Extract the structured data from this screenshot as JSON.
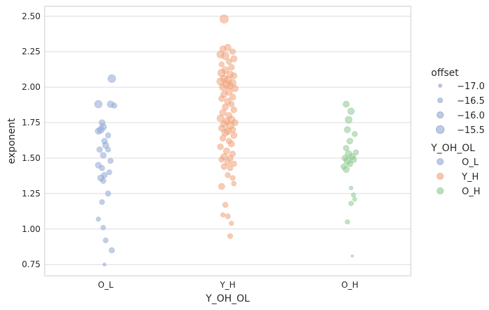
{
  "chart_data": {
    "type": "scatter",
    "title": "",
    "xlabel": "Y_OH_OL",
    "ylabel": "exponent",
    "categories": [
      "O_L",
      "Y_H",
      "O_H"
    ],
    "ylim": [
      0.67,
      2.57
    ],
    "yticks": [
      "0.75",
      "1.00",
      "1.25",
      "1.50",
      "1.75",
      "2.00",
      "2.25",
      "2.50"
    ],
    "grid": true,
    "legend_placement": "right",
    "size_legend": {
      "title": "offset",
      "labels": [
        "−17.0",
        "−16.5",
        "−16.0",
        "−15.5"
      ]
    },
    "hue_legend": {
      "title": "Y_OH_OL",
      "labels": [
        "O_L",
        "Y_H",
        "O_H"
      ]
    },
    "colors": {
      "O_L": "#8fa7d4",
      "Y_H": "#f0a27a",
      "O_H": "#8cc98f"
    },
    "series": [
      {
        "name": "O_L",
        "points": [
          {
            "j": 0.05,
            "y": 2.06,
            "o": -15.5
          },
          {
            "j": -0.06,
            "y": 1.88,
            "o": -15.6
          },
          {
            "j": 0.04,
            "y": 1.88,
            "o": -15.9
          },
          {
            "j": 0.07,
            "y": 1.87,
            "o": -16.3
          },
          {
            "j": -0.03,
            "y": 1.75,
            "o": -16.1
          },
          {
            "j": -0.02,
            "y": 1.72,
            "o": -15.9
          },
          {
            "j": -0.04,
            "y": 1.7,
            "o": -15.8
          },
          {
            "j": -0.06,
            "y": 1.69,
            "o": -16.0
          },
          {
            "j": 0.02,
            "y": 1.66,
            "o": -16.3
          },
          {
            "j": -0.01,
            "y": 1.62,
            "o": -16.2
          },
          {
            "j": 0.0,
            "y": 1.59,
            "o": -16.0
          },
          {
            "j": -0.05,
            "y": 1.56,
            "o": -16.2
          },
          {
            "j": 0.02,
            "y": 1.56,
            "o": -16.4
          },
          {
            "j": -0.02,
            "y": 1.52,
            "o": -16.1
          },
          {
            "j": 0.04,
            "y": 1.48,
            "o": -16.3
          },
          {
            "j": -0.06,
            "y": 1.45,
            "o": -16.1
          },
          {
            "j": -0.03,
            "y": 1.43,
            "o": -16.3
          },
          {
            "j": 0.03,
            "y": 1.4,
            "o": -16.4
          },
          {
            "j": -0.01,
            "y": 1.38,
            "o": -16.2
          },
          {
            "j": -0.04,
            "y": 1.36,
            "o": -16.0
          },
          {
            "j": -0.02,
            "y": 1.34,
            "o": -16.3
          },
          {
            "j": 0.02,
            "y": 1.25,
            "o": -16.3
          },
          {
            "j": -0.03,
            "y": 1.19,
            "o": -16.4
          },
          {
            "j": -0.06,
            "y": 1.07,
            "o": -16.6
          },
          {
            "j": -0.02,
            "y": 1.01,
            "o": -16.5
          },
          {
            "j": 0.0,
            "y": 0.92,
            "o": -16.4
          },
          {
            "j": 0.05,
            "y": 0.85,
            "o": -16.3
          },
          {
            "j": -0.01,
            "y": 0.75,
            "o": -17.0
          }
        ]
      },
      {
        "name": "Y_H",
        "points": [
          {
            "j": -0.03,
            "y": 2.48,
            "o": -15.3
          },
          {
            "j": 0.0,
            "y": 2.28,
            "o": -15.9
          },
          {
            "j": -0.04,
            "y": 2.27,
            "o": -16.1
          },
          {
            "j": 0.04,
            "y": 2.25,
            "o": -16.2
          },
          {
            "j": -0.06,
            "y": 2.23,
            "o": -15.7
          },
          {
            "j": -0.02,
            "y": 2.22,
            "o": -15.6
          },
          {
            "j": 0.05,
            "y": 2.2,
            "o": -16.0
          },
          {
            "j": 0.01,
            "y": 2.18,
            "o": -16.2
          },
          {
            "j": -0.05,
            "y": 2.16,
            "o": -16.3
          },
          {
            "j": 0.03,
            "y": 2.14,
            "o": -16.1
          },
          {
            "j": -0.02,
            "y": 2.12,
            "o": -15.8
          },
          {
            "j": -0.05,
            "y": 2.1,
            "o": -15.6
          },
          {
            "j": 0.02,
            "y": 2.09,
            "o": -15.9
          },
          {
            "j": 0.05,
            "y": 2.08,
            "o": -16.0
          },
          {
            "j": -0.03,
            "y": 2.06,
            "o": -15.7
          },
          {
            "j": 0.0,
            "y": 2.05,
            "o": -15.6
          },
          {
            "j": -0.06,
            "y": 2.04,
            "o": -15.7
          },
          {
            "j": 0.04,
            "y": 2.03,
            "o": -15.8
          },
          {
            "j": -0.01,
            "y": 2.02,
            "o": -15.5
          },
          {
            "j": 0.02,
            "y": 2.01,
            "o": -15.9
          },
          {
            "j": -0.04,
            "y": 2.0,
            "o": -15.8
          },
          {
            "j": 0.06,
            "y": 1.99,
            "o": -16.0
          },
          {
            "j": 0.01,
            "y": 1.97,
            "o": -15.7
          },
          {
            "j": -0.03,
            "y": 1.95,
            "o": -15.9
          },
          {
            "j": 0.04,
            "y": 1.93,
            "o": -16.0
          },
          {
            "j": -0.05,
            "y": 1.92,
            "o": -16.1
          },
          {
            "j": 0.0,
            "y": 1.9,
            "o": -15.9
          },
          {
            "j": 0.03,
            "y": 1.88,
            "o": -16.2
          },
          {
            "j": -0.02,
            "y": 1.86,
            "o": -16.0
          },
          {
            "j": 0.05,
            "y": 1.84,
            "o": -16.1
          },
          {
            "j": -0.04,
            "y": 1.82,
            "o": -15.9
          },
          {
            "j": 0.01,
            "y": 1.8,
            "o": -16.0
          },
          {
            "j": -0.06,
            "y": 1.78,
            "o": -15.8
          },
          {
            "j": 0.03,
            "y": 1.77,
            "o": -15.7
          },
          {
            "j": -0.01,
            "y": 1.76,
            "o": -15.9
          },
          {
            "j": 0.06,
            "y": 1.75,
            "o": -16.1
          },
          {
            "j": -0.03,
            "y": 1.74,
            "o": -15.8
          },
          {
            "j": 0.02,
            "y": 1.73,
            "o": -15.7
          },
          {
            "j": -0.05,
            "y": 1.71,
            "o": -16.0
          },
          {
            "j": 0.04,
            "y": 1.7,
            "o": -16.1
          },
          {
            "j": 0.0,
            "y": 1.69,
            "o": -15.8
          },
          {
            "j": -0.02,
            "y": 1.68,
            "o": -15.7
          },
          {
            "j": 0.05,
            "y": 1.66,
            "o": -16.0
          },
          {
            "j": -0.04,
            "y": 1.64,
            "o": -16.1
          },
          {
            "j": 0.01,
            "y": 1.62,
            "o": -16.2
          },
          {
            "j": 0.03,
            "y": 1.6,
            "o": -16.0
          },
          {
            "j": -0.06,
            "y": 1.58,
            "o": -16.1
          },
          {
            "j": -0.01,
            "y": 1.55,
            "o": -16.0
          },
          {
            "j": 0.04,
            "y": 1.53,
            "o": -16.2
          },
          {
            "j": -0.03,
            "y": 1.51,
            "o": -15.9
          },
          {
            "j": 0.02,
            "y": 1.5,
            "o": -16.1
          },
          {
            "j": -0.05,
            "y": 1.49,
            "o": -16.2
          },
          {
            "j": 0.0,
            "y": 1.47,
            "o": -16.0
          },
          {
            "j": 0.05,
            "y": 1.46,
            "o": -16.2
          },
          {
            "j": -0.03,
            "y": 1.44,
            "o": -16.1
          },
          {
            "j": 0.02,
            "y": 1.43,
            "o": -16.3
          },
          {
            "j": 0.0,
            "y": 1.38,
            "o": -16.3
          },
          {
            "j": 0.04,
            "y": 1.36,
            "o": -16.4
          },
          {
            "j": -0.05,
            "y": 1.3,
            "o": -16.0
          },
          {
            "j": 0.05,
            "y": 1.32,
            "o": -16.5
          },
          {
            "j": -0.02,
            "y": 1.17,
            "o": -16.3
          },
          {
            "j": -0.04,
            "y": 1.1,
            "o": -16.6
          },
          {
            "j": 0.0,
            "y": 1.09,
            "o": -16.4
          },
          {
            "j": 0.03,
            "y": 1.04,
            "o": -16.6
          },
          {
            "j": 0.02,
            "y": 0.95,
            "o": -16.4
          }
        ]
      },
      {
        "name": "O_H",
        "points": [
          {
            "j": -0.03,
            "y": 1.88,
            "o": -16.0
          },
          {
            "j": 0.01,
            "y": 1.83,
            "o": -15.9
          },
          {
            "j": -0.01,
            "y": 1.77,
            "o": -15.8
          },
          {
            "j": -0.02,
            "y": 1.7,
            "o": -16.0
          },
          {
            "j": 0.04,
            "y": 1.67,
            "o": -16.3
          },
          {
            "j": 0.0,
            "y": 1.62,
            "o": -16.1
          },
          {
            "j": -0.03,
            "y": 1.57,
            "o": -16.2
          },
          {
            "j": 0.05,
            "y": 1.54,
            "o": -16.3
          },
          {
            "j": -0.01,
            "y": 1.53,
            "o": -15.9
          },
          {
            "j": 0.02,
            "y": 1.51,
            "o": -16.0
          },
          {
            "j": -0.04,
            "y": 1.5,
            "o": -16.1
          },
          {
            "j": 0.03,
            "y": 1.49,
            "o": -16.0
          },
          {
            "j": -0.02,
            "y": 1.48,
            "o": -15.8
          },
          {
            "j": 0.0,
            "y": 1.46,
            "o": -16.1
          },
          {
            "j": -0.05,
            "y": 1.44,
            "o": -16.2
          },
          {
            "j": -0.03,
            "y": 1.42,
            "o": -16.0
          },
          {
            "j": 0.01,
            "y": 1.29,
            "o": -16.8
          },
          {
            "j": 0.03,
            "y": 1.24,
            "o": -16.6
          },
          {
            "j": 0.04,
            "y": 1.21,
            "o": -16.7
          },
          {
            "j": 0.01,
            "y": 1.18,
            "o": -16.5
          },
          {
            "j": -0.02,
            "y": 1.05,
            "o": -16.6
          },
          {
            "j": 0.02,
            "y": 0.81,
            "o": -17.2
          }
        ]
      }
    ]
  }
}
